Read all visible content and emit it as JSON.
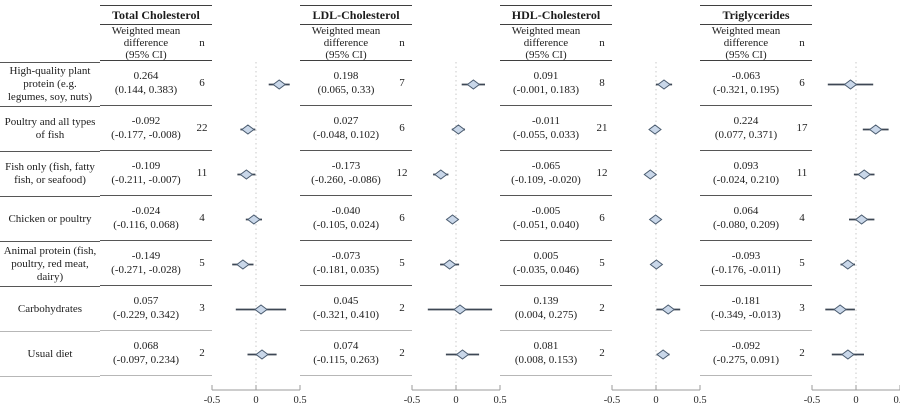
{
  "colors": {
    "diamond_fill": "#c9d7e9",
    "diamond_stroke": "#4a5b6f",
    "ci_line": "#3e4754",
    "zero_line": "#c9c9c9",
    "axis": "#9b9b9b",
    "axis_text": "#2b2b2b",
    "rule_dark": "#565656",
    "rule_light": "#b7b7b7"
  },
  "chart_data": {
    "type": "forest",
    "xlim": [
      -0.5,
      0.5
    ],
    "xtick_values": [
      -0.5,
      0,
      0.5
    ],
    "xtick_labels": [
      "-0.5",
      "0",
      "0.5"
    ],
    "column_header": {
      "lines": [
        "Weighted mean",
        "difference",
        "(95% CI)"
      ],
      "n": "n"
    },
    "categories": [
      "High-quality plant protein (e.g. legumes, soy, nuts)",
      "Poultry and all types of fish",
      "Fish only (fish, fatty fish, or seafood)",
      "Chicken or poultry",
      "Animal protein (fish, poultry, red meat, dairy)",
      "Carbohydrates",
      "Usual diet"
    ],
    "panels": [
      {
        "title": "Total Cholesterol",
        "rows": [
          {
            "est": 0.264,
            "lo": 0.144,
            "hi": 0.383,
            "n": 6,
            "est_text": "0.264",
            "ci_text": "(0.144, 0.383)"
          },
          {
            "est": -0.092,
            "lo": -0.177,
            "hi": -0.008,
            "n": 22,
            "est_text": "-0.092",
            "ci_text": "(-0.177, -0.008)"
          },
          {
            "est": -0.109,
            "lo": -0.211,
            "hi": -0.007,
            "n": 11,
            "est_text": "-0.109",
            "ci_text": "(-0.211, -0.007)"
          },
          {
            "est": -0.024,
            "lo": -0.116,
            "hi": 0.068,
            "n": 4,
            "est_text": "-0.024",
            "ci_text": "(-0.116, 0.068)"
          },
          {
            "est": -0.149,
            "lo": -0.271,
            "hi": -0.028,
            "n": 5,
            "est_text": "-0.149",
            "ci_text": "(-0.271, -0.028)"
          },
          {
            "est": 0.057,
            "lo": -0.229,
            "hi": 0.342,
            "n": 3,
            "est_text": "0.057",
            "ci_text": "(-0.229, 0.342)"
          },
          {
            "est": 0.068,
            "lo": -0.097,
            "hi": 0.234,
            "n": 2,
            "est_text": "0.068",
            "ci_text": "(-0.097, 0.234)"
          }
        ]
      },
      {
        "title": "LDL-Cholesterol",
        "rows": [
          {
            "est": 0.198,
            "lo": 0.065,
            "hi": 0.33,
            "n": 7,
            "est_text": "0.198",
            "ci_text": "(0.065, 0.33)"
          },
          {
            "est": 0.027,
            "lo": -0.048,
            "hi": 0.102,
            "n": 6,
            "est_text": "0.027",
            "ci_text": "(-0.048, 0.102)"
          },
          {
            "est": -0.173,
            "lo": -0.26,
            "hi": -0.086,
            "n": 12,
            "est_text": "-0.173",
            "ci_text": "(-0.260, -0.086)"
          },
          {
            "est": -0.04,
            "lo": -0.105,
            "hi": 0.024,
            "n": 6,
            "est_text": "-0.040",
            "ci_text": "(-0.105, 0.024)"
          },
          {
            "est": -0.073,
            "lo": -0.181,
            "hi": 0.035,
            "n": 5,
            "est_text": "-0.073",
            "ci_text": "(-0.181, 0.035)"
          },
          {
            "est": 0.045,
            "lo": -0.321,
            "hi": 0.41,
            "n": 2,
            "est_text": "0.045",
            "ci_text": "(-0.321, 0.410)"
          },
          {
            "est": 0.074,
            "lo": -0.115,
            "hi": 0.263,
            "n": 2,
            "est_text": "0.074",
            "ci_text": "(-0.115, 0.263)"
          }
        ]
      },
      {
        "title": "HDL-Cholesterol",
        "rows": [
          {
            "est": 0.091,
            "lo": -0.001,
            "hi": 0.183,
            "n": 8,
            "est_text": "0.091",
            "ci_text": "(-0.001, 0.183)"
          },
          {
            "est": -0.011,
            "lo": -0.055,
            "hi": 0.033,
            "n": 21,
            "est_text": "-0.011",
            "ci_text": "(-0.055, 0.033)"
          },
          {
            "est": -0.065,
            "lo": -0.109,
            "hi": -0.02,
            "n": 12,
            "est_text": "-0.065",
            "ci_text": "(-0.109, -0.020)"
          },
          {
            "est": -0.005,
            "lo": -0.051,
            "hi": 0.04,
            "n": 6,
            "est_text": "-0.005",
            "ci_text": "(-0.051, 0.040)"
          },
          {
            "est": 0.005,
            "lo": -0.035,
            "hi": 0.046,
            "n": 5,
            "est_text": "0.005",
            "ci_text": "(-0.035, 0.046)"
          },
          {
            "est": 0.139,
            "lo": 0.004,
            "hi": 0.275,
            "n": 2,
            "est_text": "0.139",
            "ci_text": "(0.004, 0.275)"
          },
          {
            "est": 0.081,
            "lo": 0.008,
            "hi": 0.153,
            "n": 2,
            "est_text": "0.081",
            "ci_text": "(0.008, 0.153)"
          }
        ]
      },
      {
        "title": "Triglycerides",
        "rows": [
          {
            "est": -0.063,
            "lo": -0.321,
            "hi": 0.195,
            "n": 6,
            "est_text": "-0.063",
            "ci_text": "(-0.321, 0.195)"
          },
          {
            "est": 0.224,
            "lo": 0.077,
            "hi": 0.371,
            "n": 17,
            "est_text": "0.224",
            "ci_text": "(0.077, 0.371)"
          },
          {
            "est": 0.093,
            "lo": -0.024,
            "hi": 0.21,
            "n": 11,
            "est_text": "0.093",
            "ci_text": "(-0.024, 0.210)"
          },
          {
            "est": 0.064,
            "lo": -0.08,
            "hi": 0.209,
            "n": 4,
            "est_text": "0.064",
            "ci_text": "(-0.080, 0.209)"
          },
          {
            "est": -0.093,
            "lo": -0.176,
            "hi": -0.011,
            "n": 5,
            "est_text": "-0.093",
            "ci_text": "(-0.176, -0.011)"
          },
          {
            "est": -0.181,
            "lo": -0.349,
            "hi": -0.013,
            "n": 3,
            "est_text": "-0.181",
            "ci_text": "(-0.349, -0.013)"
          },
          {
            "est": -0.092,
            "lo": -0.275,
            "hi": 0.091,
            "n": 2,
            "est_text": "-0.092",
            "ci_text": "(-0.275, 0.091)"
          }
        ]
      }
    ]
  }
}
